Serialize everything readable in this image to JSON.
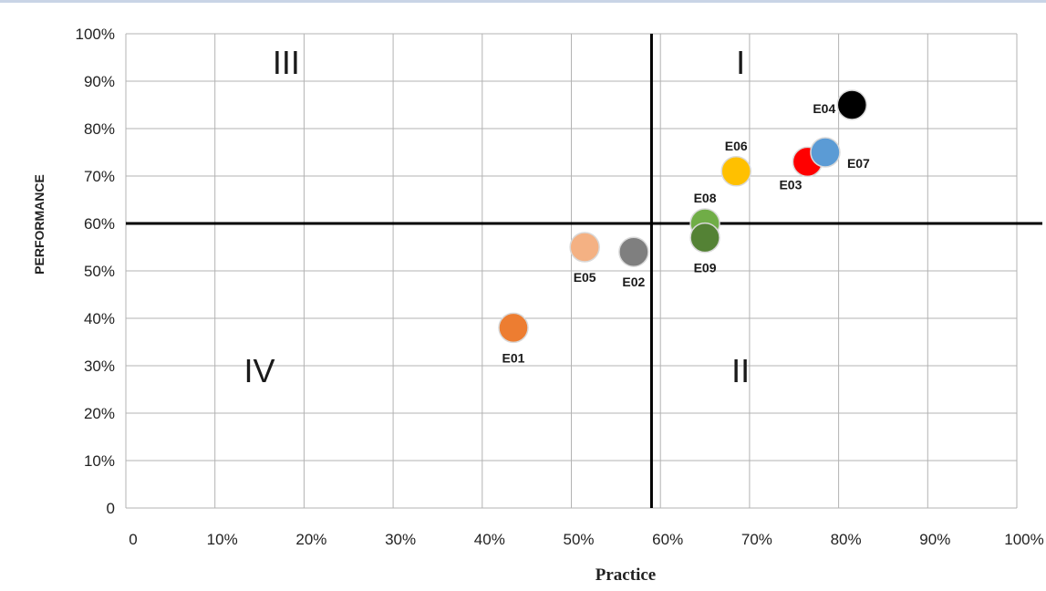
{
  "chart_data": {
    "type": "scatter",
    "xlabel": "Practice",
    "ylabel": "PERFORMANCE",
    "xlim": [
      0,
      100
    ],
    "ylim": [
      0,
      100
    ],
    "grid": true,
    "x_ticks": [
      "0",
      "10%",
      "20%",
      "30%",
      "40%",
      "50%",
      "60%",
      "70%",
      "80%",
      "90%",
      "100%"
    ],
    "y_ticks": [
      "0",
      "10%",
      "20%",
      "30%",
      "40%",
      "50%",
      "60%",
      "70%",
      "80%",
      "90%",
      "100%"
    ],
    "divider_x": 59,
    "divider_y": 60,
    "quadrants": [
      {
        "label": "I",
        "x": 69,
        "y": 94
      },
      {
        "label": "II",
        "x": 69,
        "y": 29
      },
      {
        "label": "III",
        "x": 18,
        "y": 94
      },
      {
        "label": "IV",
        "x": 15,
        "y": 29
      }
    ],
    "points": [
      {
        "name": "E01",
        "x": 43.5,
        "y": 38,
        "color": "#ed7d31",
        "label_pos": "below"
      },
      {
        "name": "E02",
        "x": 57,
        "y": 54,
        "color": "#7f7f7f",
        "label_pos": "below"
      },
      {
        "name": "E03",
        "x": 76.5,
        "y": 73,
        "color": "#ff0000",
        "label_pos": "below-left"
      },
      {
        "name": "E04",
        "x": 81.5,
        "y": 85,
        "color": "#000000",
        "label_pos": "left"
      },
      {
        "name": "E05",
        "x": 51.5,
        "y": 55,
        "color": "#f4b183",
        "label_pos": "below"
      },
      {
        "name": "E06",
        "x": 68.5,
        "y": 71,
        "color": "#ffc000",
        "label_pos": "above"
      },
      {
        "name": "E07",
        "x": 78.5,
        "y": 75,
        "color": "#5b9bd5",
        "label_pos": "right"
      },
      {
        "name": "E08",
        "x": 65,
        "y": 60,
        "color": "#70ad47",
        "label_pos": "above"
      },
      {
        "name": "E09",
        "x": 65,
        "y": 57,
        "color": "#548235",
        "label_pos": "below"
      }
    ]
  }
}
